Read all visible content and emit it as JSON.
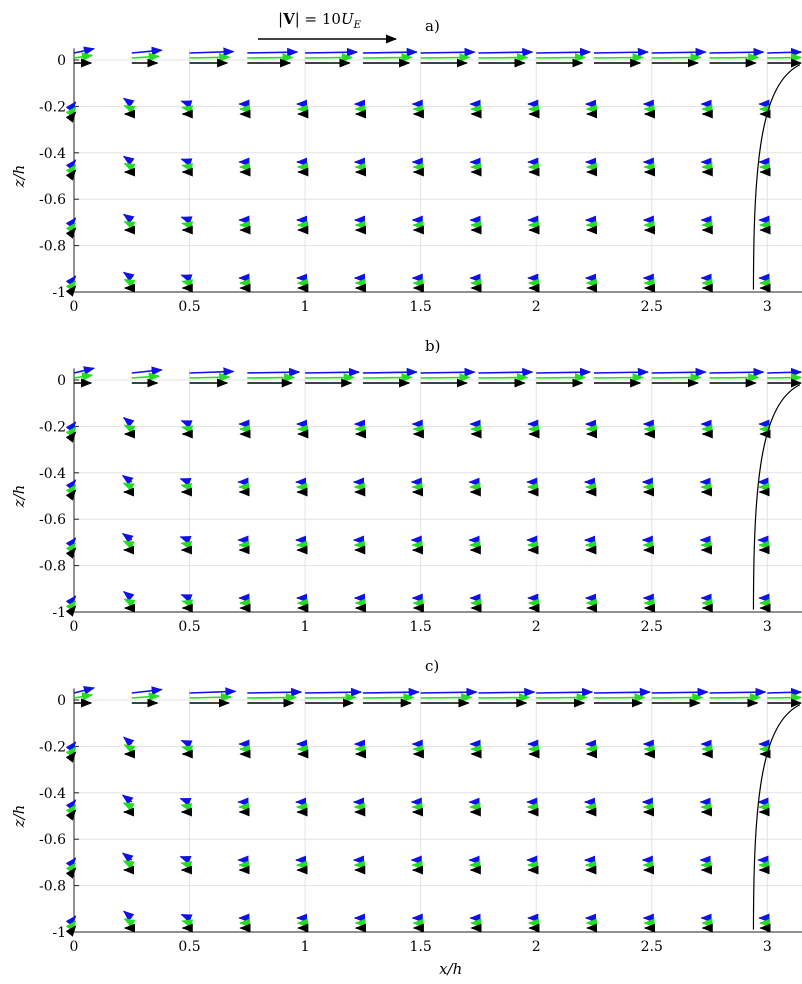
{
  "figure": {
    "scale_label": "|V| = 10U_E",
    "scale_label_parts": [
      "|",
      "V",
      "| = 10",
      "U",
      "E"
    ],
    "colors": {
      "blue": "#1010e8",
      "green": "#22dd22",
      "black": "#000000"
    }
  },
  "chart_data": [
    {
      "type": "quiver",
      "panel_label": "a)",
      "xlabel": "",
      "ylabel": "z/h",
      "xlim": [
        0,
        3.15
      ],
      "ylim": [
        -1,
        0.05
      ],
      "xticks": [
        "0",
        "0.5",
        "1",
        "1.5",
        "2",
        "2.5",
        "3"
      ],
      "yticks": [
        "0",
        "-0.2",
        "-0.4",
        "-0.6",
        "-0.8",
        "-1"
      ],
      "x_positions": [
        0,
        0.25,
        0.5,
        0.75,
        1.0,
        1.25,
        1.5,
        1.75,
        2.0,
        2.25,
        2.5,
        2.75,
        3.0
      ],
      "z_levels": [
        0,
        -0.22,
        -0.47,
        -0.72,
        -0.97
      ],
      "surface_u": [
        1.0,
        1.5,
        2.2,
        2.5,
        2.6,
        2.7,
        2.7,
        2.7,
        2.7,
        2.7,
        2.7,
        2.7,
        2.7
      ],
      "return_u": [
        -0.4,
        -0.4,
        -0.4,
        -0.4
      ],
      "tilt": 0.25
    },
    {
      "type": "quiver",
      "panel_label": "b)",
      "xlabel": "",
      "ylabel": "z/h",
      "xlim": [
        0,
        3.15
      ],
      "ylim": [
        -1,
        0.05
      ],
      "xticks": [
        "0",
        "0.5",
        "1",
        "1.5",
        "2",
        "2.5",
        "3"
      ],
      "yticks": [
        "0",
        "-0.2",
        "-0.4",
        "-0.6",
        "-0.8",
        "-1"
      ],
      "x_positions": [
        0,
        0.25,
        0.5,
        0.75,
        1.0,
        1.25,
        1.5,
        1.75,
        2.0,
        2.25,
        2.5,
        2.75,
        3.0
      ],
      "z_levels": [
        0,
        -0.22,
        -0.47,
        -0.72,
        -0.97
      ],
      "surface_u": [
        1.0,
        1.5,
        2.2,
        2.6,
        2.7,
        2.7,
        2.7,
        2.7,
        2.7,
        2.7,
        2.7,
        2.7,
        2.7
      ],
      "return_u": [
        -0.4,
        -0.45,
        -0.45,
        -0.4
      ],
      "tilt": 0.28
    },
    {
      "type": "quiver",
      "panel_label": "c)",
      "xlabel": "x/h",
      "ylabel": "z/h",
      "xlim": [
        0,
        3.15
      ],
      "ylim": [
        -1,
        0.05
      ],
      "xticks": [
        "0",
        "0.5",
        "1",
        "1.5",
        "2",
        "2.5",
        "3"
      ],
      "yticks": [
        "0",
        "-0.2",
        "-0.4",
        "-0.6",
        "-0.8",
        "-1"
      ],
      "x_positions": [
        0,
        0.25,
        0.5,
        0.75,
        1.0,
        1.25,
        1.5,
        1.75,
        2.0,
        2.25,
        2.5,
        2.75,
        3.0
      ],
      "z_levels": [
        0,
        -0.22,
        -0.47,
        -0.72,
        -0.97
      ],
      "surface_u": [
        1.0,
        1.5,
        2.3,
        2.7,
        2.8,
        2.8,
        2.8,
        2.8,
        2.8,
        2.8,
        2.8,
        2.8,
        2.8
      ],
      "return_u": [
        -0.4,
        -0.45,
        -0.45,
        -0.4
      ],
      "tilt": 0.3
    }
  ]
}
